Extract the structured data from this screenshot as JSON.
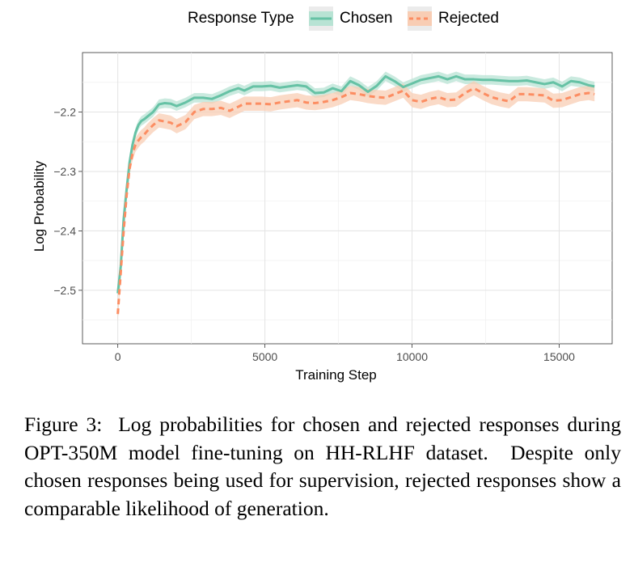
{
  "legend": {
    "title": "Response Type",
    "items": [
      {
        "label": "Chosen",
        "color": "#66c2a5",
        "dashed": false
      },
      {
        "label": "Rejected",
        "color": "#fc8d62",
        "dashed": true
      }
    ]
  },
  "chart_data": {
    "type": "line",
    "xlabel": "Training Step",
    "ylabel": "Log Probability",
    "xlim": [
      -1200,
      16800
    ],
    "ylim": [
      -2.59,
      -2.1
    ],
    "xticks": [
      0,
      5000,
      10000,
      15000
    ],
    "xtick_labels": [
      "0",
      "5000",
      "10000",
      "15000"
    ],
    "yticks": [
      -2.5,
      -2.4,
      -2.3,
      -2.2
    ],
    "ytick_labels": [
      "−2.5",
      "−2.4",
      "−2.3",
      "−2.2"
    ],
    "grid": true,
    "series": [
      {
        "name": "Chosen",
        "color": "#66c2a5",
        "ribbon_color": "#b8e3d4",
        "style": "solid",
        "band_halfwidth": 0.008,
        "x": [
          0,
          100,
          200,
          300,
          400,
          500,
          600,
          700,
          800,
          900,
          1000,
          1200,
          1400,
          1600,
          1800,
          2000,
          2300,
          2600,
          2900,
          3200,
          3500,
          3800,
          4100,
          4300,
          4600,
          4900,
          5200,
          5500,
          5800,
          6100,
          6400,
          6700,
          7000,
          7300,
          7600,
          7900,
          8200,
          8500,
          8800,
          9100,
          9400,
          9700,
          10000,
          10300,
          10600,
          10900,
          11200,
          11500,
          11800,
          12100,
          12400,
          12700,
          13000,
          13300,
          13600,
          13900,
          14200,
          14500,
          14800,
          15100,
          15400,
          15700,
          16000,
          16200
        ],
        "y": [
          -2.505,
          -2.46,
          -2.38,
          -2.33,
          -2.285,
          -2.255,
          -2.235,
          -2.222,
          -2.215,
          -2.212,
          -2.208,
          -2.2,
          -2.187,
          -2.185,
          -2.186,
          -2.19,
          -2.184,
          -2.176,
          -2.176,
          -2.178,
          -2.172,
          -2.165,
          -2.16,
          -2.164,
          -2.157,
          -2.157,
          -2.156,
          -2.159,
          -2.157,
          -2.155,
          -2.157,
          -2.168,
          -2.167,
          -2.16,
          -2.165,
          -2.148,
          -2.155,
          -2.166,
          -2.156,
          -2.14,
          -2.148,
          -2.158,
          -2.152,
          -2.146,
          -2.143,
          -2.14,
          -2.145,
          -2.14,
          -2.145,
          -2.145,
          -2.146,
          -2.146,
          -2.147,
          -2.148,
          -2.148,
          -2.147,
          -2.15,
          -2.153,
          -2.15,
          -2.157,
          -2.148,
          -2.15,
          -2.155,
          -2.157
        ]
      },
      {
        "name": "Rejected",
        "color": "#fc8d62",
        "ribbon_color": "#f8cdb4",
        "style": "dashed",
        "band_halfwidth": 0.012,
        "x": [
          0,
          100,
          200,
          300,
          400,
          500,
          600,
          700,
          800,
          900,
          1000,
          1200,
          1400,
          1600,
          1800,
          2000,
          2300,
          2600,
          2900,
          3200,
          3500,
          3800,
          4100,
          4300,
          4600,
          4900,
          5200,
          5500,
          5800,
          6100,
          6400,
          6700,
          7000,
          7300,
          7600,
          7900,
          8200,
          8500,
          8800,
          9100,
          9400,
          9700,
          10000,
          10300,
          10600,
          10900,
          11200,
          11500,
          11800,
          12100,
          12400,
          12700,
          13000,
          13300,
          13600,
          13900,
          14200,
          14500,
          14800,
          15100,
          15400,
          15700,
          16000,
          16200
        ],
        "y": [
          -2.54,
          -2.47,
          -2.4,
          -2.34,
          -2.295,
          -2.27,
          -2.255,
          -2.248,
          -2.242,
          -2.238,
          -2.232,
          -2.222,
          -2.214,
          -2.216,
          -2.218,
          -2.224,
          -2.217,
          -2.2,
          -2.195,
          -2.195,
          -2.193,
          -2.198,
          -2.191,
          -2.186,
          -2.186,
          -2.186,
          -2.187,
          -2.184,
          -2.182,
          -2.18,
          -2.184,
          -2.185,
          -2.183,
          -2.18,
          -2.175,
          -2.168,
          -2.17,
          -2.173,
          -2.175,
          -2.176,
          -2.17,
          -2.164,
          -2.18,
          -2.183,
          -2.178,
          -2.175,
          -2.18,
          -2.179,
          -2.168,
          -2.16,
          -2.168,
          -2.175,
          -2.179,
          -2.182,
          -2.17,
          -2.17,
          -2.171,
          -2.172,
          -2.181,
          -2.18,
          -2.175,
          -2.17,
          -2.168,
          -2.17
        ]
      }
    ]
  },
  "caption": "Figure 3:  Log probabilities for chosen and rejected responses during OPT-350M model fine-tuning on HH-RLHF dataset.  Despite only chosen responses being used for supervision, rejected responses show a comparable likelihood of generation."
}
